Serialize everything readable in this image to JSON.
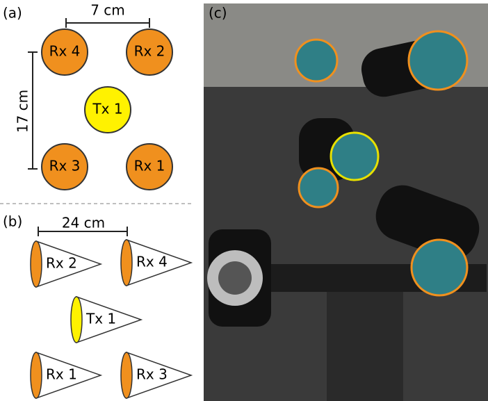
{
  "panel_a": {
    "label": "(a)",
    "width_label": "7 cm",
    "height_label": "17 cm",
    "nodes": [
      {
        "label": "Rx 4",
        "color": "#f0901e"
      },
      {
        "label": "Rx 2",
        "color": "#f0901e"
      },
      {
        "label": "Tx 1",
        "color": "#fff200"
      },
      {
        "label": "Rx 3",
        "color": "#f0901e"
      },
      {
        "label": "Rx 1",
        "color": "#f0901e"
      }
    ]
  },
  "panel_b": {
    "label": "(b)",
    "width_label": "24 cm",
    "cones": [
      {
        "label": "Rx 2",
        "color": "#f0901e"
      },
      {
        "label": "Rx 4",
        "color": "#f0901e"
      },
      {
        "label": "Tx 1",
        "color": "#fff200"
      },
      {
        "label": "Rx 1",
        "color": "#f0901e"
      },
      {
        "label": "Rx 3",
        "color": "#f0901e"
      }
    ]
  },
  "panel_c": {
    "label": "(c)"
  }
}
